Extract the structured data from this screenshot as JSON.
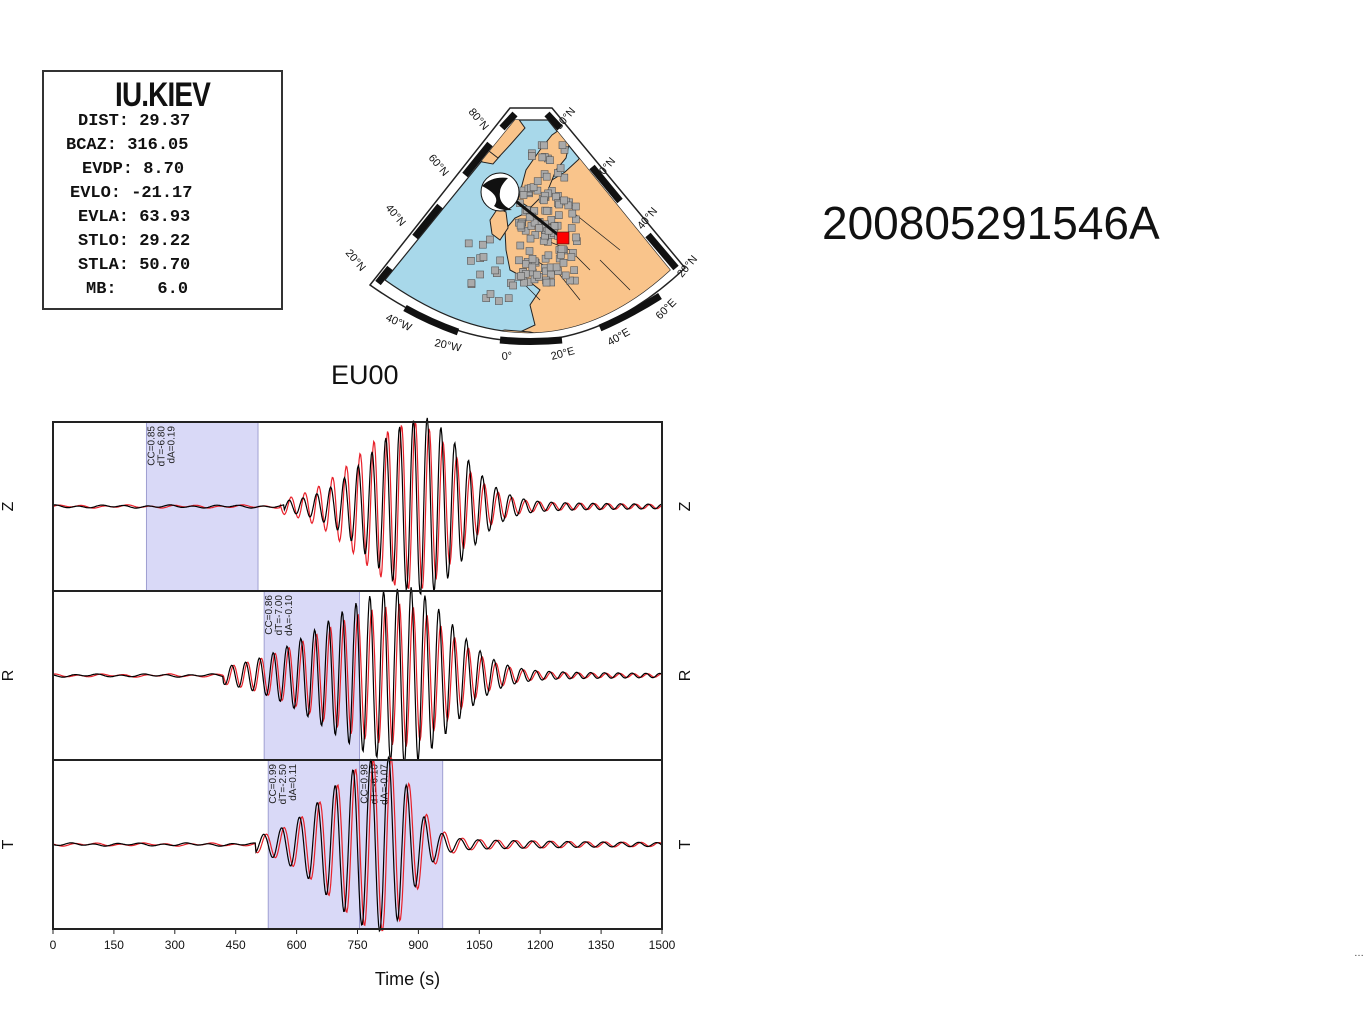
{
  "station": {
    "name": "IU.KIEV",
    "lines": [
      "DIST: 29.37",
      "BCAZ: 316.05",
      "EVDP: 8.70",
      "EVLO: -21.17",
      "EVLA: 63.93",
      "STLO: 29.22",
      "STLA: 50.70",
      "MB:    6.0"
    ]
  },
  "map": {
    "lat_labels": [
      "80°N",
      "60°N",
      "40°N",
      "20°N",
      "80°N",
      "60°N",
      "40°N",
      "20°N"
    ],
    "lon_labels": [
      "40°W",
      "20°W",
      "0°",
      "20°E",
      "40°E",
      "60°E"
    ],
    "colors": {
      "ocean": "#a8d8ea",
      "land": "#f9c48b",
      "station": "#ff0000",
      "stations": "#aaaaaa"
    }
  },
  "network_label": "EU00",
  "event_id": "200805291546A",
  "chart_data": {
    "type": "line",
    "xlabel": "Time (s)",
    "xlim": [
      0,
      1500
    ],
    "xticks": [
      0,
      150,
      300,
      450,
      600,
      750,
      900,
      1050,
      1200,
      1350,
      1500
    ],
    "series_colors": {
      "data": "#000000",
      "synthetic": "#e8212a"
    },
    "panels": [
      {
        "component": "Z",
        "windows": [
          {
            "start": 230,
            "end": 505,
            "annotation": [
              "CC=0.85",
              "dT=-6.80",
              "dA=0.19"
            ]
          }
        ],
        "data": {
          "onset": 570,
          "peak_time": 905,
          "peak_amp": 1.0,
          "decay": 140,
          "period": 34,
          "rise": 170
        },
        "synthetic": {
          "onset": 560,
          "peak_time": 880,
          "peak_amp": 0.95,
          "decay": 150,
          "period": 34,
          "rise": 180
        }
      },
      {
        "component": "R",
        "windows": [
          {
            "start": 520,
            "end": 755,
            "annotation": [
              "CC=0.86",
              "dT=-7.00",
              "dA=-0.10"
            ]
          }
        ],
        "data": {
          "onset": 420,
          "peak_time": 860,
          "peak_amp": 1.0,
          "decay": 160,
          "period": 34,
          "rise": 260
        },
        "synthetic": {
          "onset": 420,
          "peak_time": 850,
          "peak_amp": 0.8,
          "decay": 170,
          "period": 34,
          "rise": 270
        }
      },
      {
        "component": "T",
        "windows": [
          {
            "start": 530,
            "end": 755,
            "annotation": [
              "CC=0.99",
              "dT=-2.50",
              "dA=0.11"
            ]
          },
          {
            "start": 755,
            "end": 960,
            "annotation": [
              "CC=0.98",
              "dT=-6.10",
              "dA=-0.07"
            ]
          }
        ],
        "data": {
          "onset": 500,
          "peak_time": 810,
          "peak_amp": 1.0,
          "decay": 90,
          "period": 44,
          "rise": 180
        },
        "synthetic": {
          "onset": 500,
          "peak_time": 815,
          "peak_amp": 1.0,
          "decay": 95,
          "period": 44,
          "rise": 180
        }
      }
    ]
  }
}
